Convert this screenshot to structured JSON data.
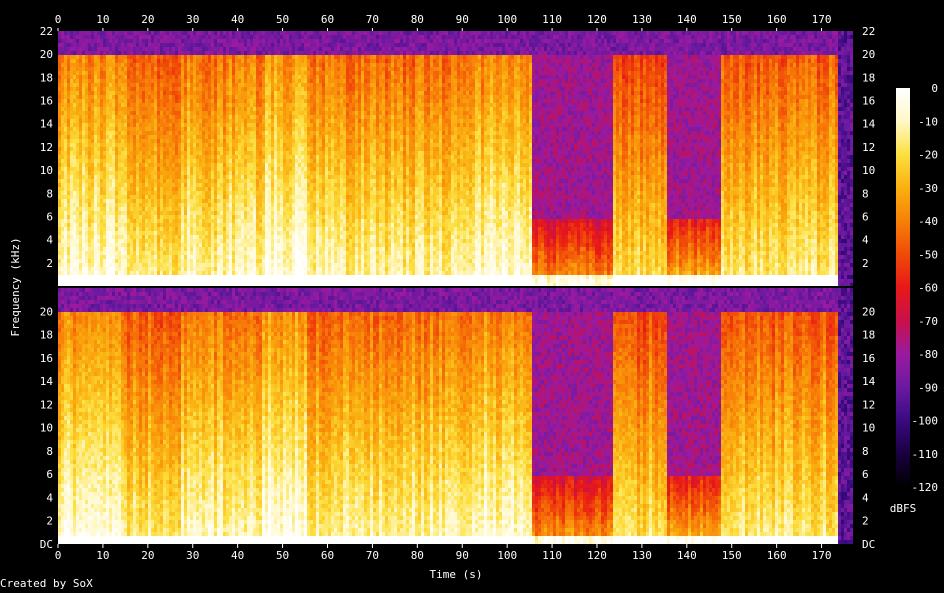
{
  "chart_data": {
    "type": "heatmap",
    "title": "",
    "xlabel": "Time (s)",
    "ylabel": "Frequency (kHz)",
    "xlim": [
      0,
      177
    ],
    "ylim": [
      0,
      22
    ],
    "x_ticks": [
      "0",
      "10",
      "20",
      "30",
      "40",
      "50",
      "60",
      "70",
      "80",
      "90",
      "100",
      "110",
      "120",
      "130",
      "140",
      "150",
      "160",
      "170"
    ],
    "y_ticks_top": [
      "2",
      "4",
      "6",
      "8",
      "10",
      "12",
      "14",
      "16",
      "18",
      "20",
      "22"
    ],
    "y_ticks_bottom": [
      "DC",
      "2",
      "4",
      "6",
      "8",
      "10",
      "12",
      "14",
      "16",
      "18",
      "20"
    ],
    "channels": 2,
    "colorbar": {
      "label": "dBFS",
      "ticks": [
        "0",
        "-10",
        "-20",
        "-30",
        "-40",
        "-50",
        "-60",
        "-70",
        "-80",
        "-90",
        "-100",
        "-110",
        "-120"
      ],
      "range": [
        -120,
        0
      ],
      "colors": [
        "#000000",
        "#1a0040",
        "#3a0a80",
        "#6a1aa0",
        "#9a1aa0",
        "#c8104a",
        "#e81818",
        "#f04a08",
        "#f88008",
        "#fab010",
        "#fce040",
        "#fff8c8",
        "#ffffff"
      ]
    },
    "segments": [
      {
        "start": 0,
        "end": 15,
        "cutoff_khz": 20,
        "level": 0.68
      },
      {
        "start": 15,
        "end": 27,
        "cutoff_khz": 20,
        "level": 0.6
      },
      {
        "start": 27,
        "end": 45,
        "cutoff_khz": 20,
        "level": 0.65
      },
      {
        "start": 45,
        "end": 55,
        "cutoff_khz": 20,
        "level": 0.7
      },
      {
        "start": 55,
        "end": 92,
        "cutoff_khz": 20,
        "level": 0.63
      },
      {
        "start": 92,
        "end": 105,
        "cutoff_khz": 20,
        "level": 0.67
      },
      {
        "start": 105,
        "end": 123,
        "cutoff_khz": 6,
        "level": 0.45
      },
      {
        "start": 123,
        "end": 135,
        "cutoff_khz": 20,
        "level": 0.58
      },
      {
        "start": 135,
        "end": 147,
        "cutoff_khz": 6,
        "level": 0.5
      },
      {
        "start": 147,
        "end": 173,
        "cutoff_khz": 20,
        "level": 0.6
      },
      {
        "start": 173,
        "end": 177,
        "cutoff_khz": 0,
        "level": 0.2
      }
    ]
  },
  "credit": "Created by SoX"
}
